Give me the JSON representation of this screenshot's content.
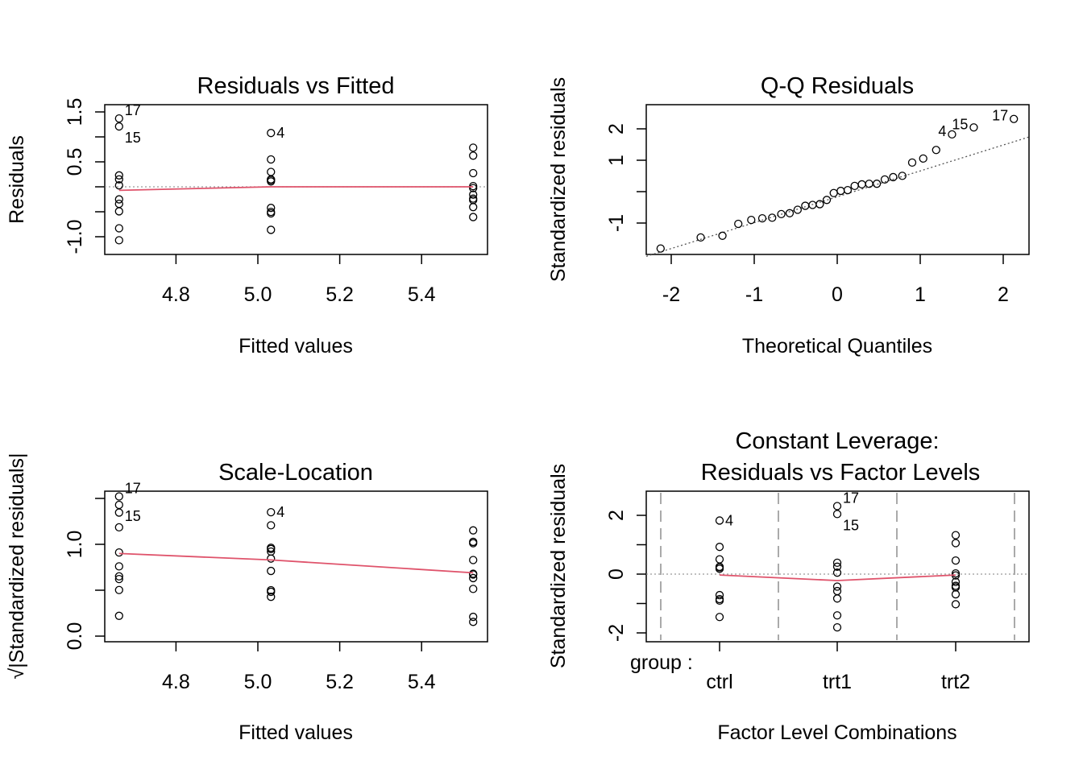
{
  "chart_data": [
    {
      "type": "scatter",
      "title": "Residuals vs Fitted",
      "xlabel": "Fitted values",
      "ylabel": "Residuals",
      "xlim": [
        4.63,
        5.56
      ],
      "ylim": [
        -1.2,
        1.6
      ],
      "xticks": [
        4.8,
        5.0,
        5.2,
        5.4
      ],
      "xtick_labels": [
        "4.8",
        "5.0",
        "5.2",
        "5.4"
      ],
      "yticks": [
        -1.0,
        -0.5,
        0,
        0.5,
        1.0,
        1.5
      ],
      "ytick_labels": [
        "-1.0",
        "",
        "",
        "0.5",
        "",
        "1.5"
      ],
      "x": [
        5.032,
        5.032,
        5.032,
        5.032,
        5.032,
        5.032,
        5.032,
        5.032,
        5.032,
        5.032,
        4.661,
        4.661,
        4.661,
        4.661,
        4.661,
        4.661,
        4.661,
        4.661,
        4.661,
        4.661,
        5.526,
        5.526,
        5.526,
        5.526,
        5.526,
        5.526,
        5.526,
        5.526,
        5.526,
        5.526
      ],
      "y": [
        -0.862,
        0.548,
        0.148,
        1.078,
        -0.532,
        -0.422,
        0.138,
        -0.502,
        0.298,
        0.108,
        0.149,
        -0.491,
        -0.251,
        -1.071,
        1.209,
        -0.831,
        1.369,
        0.229,
        -0.341,
        0.029,
        0.784,
        -0.406,
        0.014,
        -0.026,
        -0.156,
        -0.236,
        -0.606,
        0.624,
        0.274,
        -0.266
      ],
      "labeled_points": [
        "4",
        "15",
        "17"
      ],
      "reference_line": 0,
      "smoother": [
        [
          4.661,
          -0.07
        ],
        [
          5.032,
          0.0
        ],
        [
          5.526,
          0.0
        ]
      ],
      "smoother_color": "#DF536B"
    },
    {
      "type": "scatter",
      "title": "Q-Q Residuals",
      "xlabel": "Theoretical Quantiles",
      "ylabel": "Standardized residuals",
      "xlim": [
        -2.3,
        2.3
      ],
      "ylim": [
        -2.0,
        2.4
      ],
      "xticks": [
        -2,
        -1,
        0,
        1,
        2
      ],
      "xtick_labels": [
        "-2",
        "-1",
        "0",
        "1",
        "2"
      ],
      "yticks": [
        -1,
        0,
        1,
        2
      ],
      "ytick_labels": [
        "-1",
        "",
        "1",
        "2"
      ],
      "x": [
        -2.128,
        -1.645,
        -1.383,
        -1.192,
        -1.036,
        -0.903,
        -0.784,
        -0.674,
        -0.573,
        -0.477,
        -0.385,
        -0.297,
        -0.21,
        -0.126,
        -0.042,
        0.042,
        0.126,
        0.21,
        0.297,
        0.385,
        0.477,
        0.573,
        0.674,
        0.784,
        0.903,
        1.036,
        1.192,
        1.383,
        1.645,
        2.128
      ],
      "y": [
        -1.811,
        -1.458,
        -1.405,
        -1.025,
        -0.9,
        -0.849,
        -0.83,
        -0.714,
        -0.687,
        -0.577,
        -0.45,
        -0.424,
        -0.399,
        -0.264,
        -0.044,
        0.024,
        0.049,
        0.183,
        0.233,
        0.25,
        0.252,
        0.387,
        0.463,
        0.504,
        0.927,
        1.055,
        1.326,
        1.823,
        2.044,
        2.315
      ],
      "point_labels": {
        "27": "4",
        "28": "15",
        "29": "17"
      },
      "qq_line": [
        [
          -2.3,
          -2.06
        ],
        [
          2.31,
          1.74
        ]
      ]
    },
    {
      "type": "scatter",
      "title": "Scale-Location",
      "xlabel": "Fitted values",
      "ylabel": "√|Standardized residuals|",
      "xlim": [
        4.63,
        5.56
      ],
      "ylim": [
        -0.05,
        1.6
      ],
      "xticks": [
        4.8,
        5.0,
        5.2,
        5.4
      ],
      "xtick_labels": [
        "4.8",
        "5.0",
        "5.2",
        "5.4"
      ],
      "yticks": [
        0.0,
        0.5,
        1.0,
        1.5
      ],
      "ytick_labels": [
        "0.0",
        "",
        "1.0",
        ""
      ],
      "x": [
        5.032,
        5.032,
        5.032,
        5.032,
        5.032,
        5.032,
        5.032,
        5.032,
        5.032,
        5.032,
        4.661,
        4.661,
        4.661,
        4.661,
        4.661,
        4.661,
        4.661,
        4.661,
        4.661,
        4.661,
        5.526,
        5.526,
        5.526,
        5.526,
        5.526,
        5.526,
        5.526,
        5.526,
        5.526,
        5.526
      ],
      "y": [
        1.207,
        0.963,
        0.5,
        1.35,
        0.949,
        0.845,
        0.483,
        0.921,
        0.71,
        0.428,
        0.502,
        0.911,
        0.651,
        1.346,
        1.43,
        1.185,
        1.522,
        0.622,
        0.76,
        0.221,
        1.152,
        0.829,
        0.155,
        0.21,
        0.514,
        0.632,
        1.012,
        1.027,
        0.68,
        0.671
      ],
      "labeled_points": [
        "4",
        "15",
        "17"
      ],
      "smoother": [
        [
          4.661,
          0.9
        ],
        [
          5.032,
          0.83
        ],
        [
          5.526,
          0.69
        ]
      ],
      "smoother_color": "#DF536B"
    },
    {
      "type": "scatter",
      "title": "Constant Leverage:",
      "subtitle": "Residuals vs Factor Levels",
      "xlabel": "Factor Level Combinations",
      "ylabel": "Standardized residuals",
      "factor_label": "group :",
      "categories": [
        "ctrl",
        "trt1",
        "trt2"
      ],
      "ylim": [
        -2.3,
        2.8
      ],
      "yticks": [
        -2,
        -1,
        0,
        1,
        2
      ],
      "ytick_labels": [
        "-2",
        "",
        "0",
        "",
        "2"
      ],
      "group": [
        "ctrl",
        "ctrl",
        "ctrl",
        "ctrl",
        "ctrl",
        "ctrl",
        "ctrl",
        "ctrl",
        "ctrl",
        "ctrl",
        "trt1",
        "trt1",
        "trt1",
        "trt1",
        "trt1",
        "trt1",
        "trt1",
        "trt1",
        "trt1",
        "trt1",
        "trt2",
        "trt2",
        "trt2",
        "trt2",
        "trt2",
        "trt2",
        "trt2",
        "trt2",
        "trt2",
        "trt2"
      ],
      "y": [
        -1.458,
        0.927,
        0.25,
        1.823,
        -0.9,
        -0.714,
        0.233,
        -0.849,
        0.504,
        0.183,
        0.252,
        -0.83,
        -0.424,
        -1.811,
        2.044,
        -1.405,
        2.315,
        0.387,
        -0.577,
        0.049,
        1.326,
        -0.687,
        0.024,
        -0.044,
        -0.264,
        -0.399,
        -1.025,
        1.055,
        0.463,
        -0.45
      ],
      "labeled_points": [
        "4",
        "15",
        "17"
      ],
      "reference_line": 0,
      "smoother": [
        [
          "ctrl",
          -0.03
        ],
        [
          "trt1",
          -0.22
        ],
        [
          "trt2",
          -0.03
        ]
      ],
      "smoother_color": "#DF536B"
    }
  ]
}
